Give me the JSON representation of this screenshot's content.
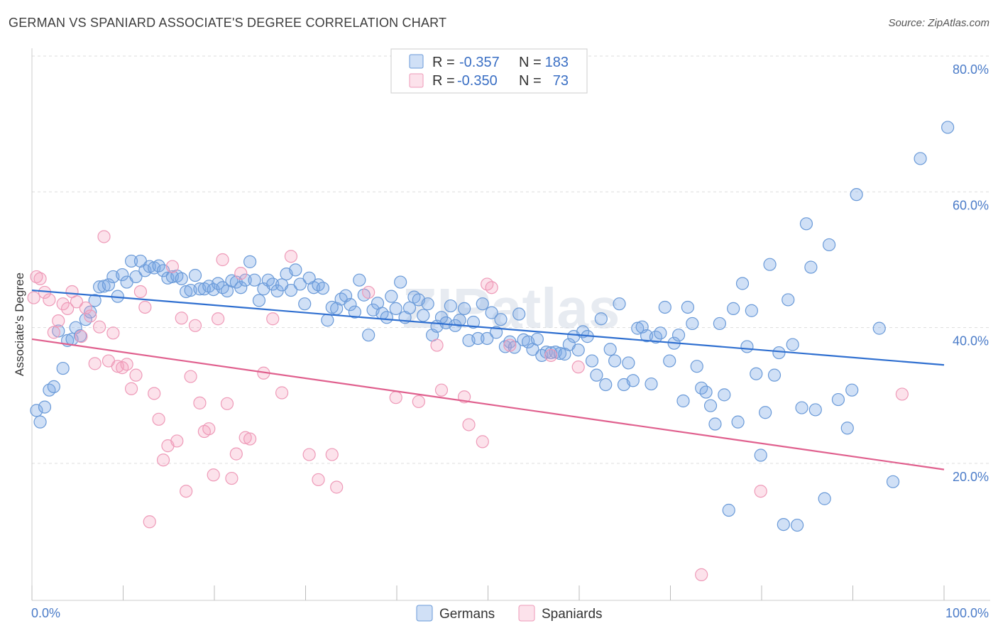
{
  "title": "GERMAN VS SPANIARD ASSOCIATE'S DEGREE CORRELATION CHART",
  "source": "Source: ZipAtlas.com",
  "watermark": "ZIPatlas",
  "colors": {
    "germans_fill": "rgba(120,165,230,0.35)",
    "germans_stroke": "#6a9ad8",
    "germans_line": "#2f6fd0",
    "spaniards_fill": "rgba(245,160,190,0.30)",
    "spaniards_stroke": "#ee9ab8",
    "spaniards_line": "#e0608e",
    "grid": "#dddddd",
    "axis_text": "#4a7bc8"
  },
  "legend": {
    "r_label": "R =",
    "n_label": "N =",
    "rows": [
      {
        "series": "Germans",
        "r": "-0.357",
        "n": "183"
      },
      {
        "series": "Spaniards",
        "r": "-0.350",
        "n": "73"
      }
    ]
  },
  "chart_data": {
    "type": "scatter",
    "title": "GERMAN VS SPANIARD ASSOCIATE'S DEGREE CORRELATION CHART",
    "xlabel": "",
    "ylabel": "Associate's Degree",
    "xlim": [
      0,
      100
    ],
    "ylim": [
      0,
      82
    ],
    "x_tick_labels": [
      "0.0%",
      "100.0%"
    ],
    "y_ticks": [
      20,
      40,
      60,
      80
    ],
    "y_tick_labels": [
      "20.0%",
      "40.0%",
      "60.0%",
      "80.0%"
    ],
    "legend_position": "bottom",
    "series": [
      {
        "name": "Germans",
        "trend": {
          "x": [
            0,
            100
          ],
          "y": [
            45.5,
            34.5
          ]
        },
        "points": [
          [
            0.5,
            27.8
          ],
          [
            0.9,
            26.1
          ],
          [
            1.4,
            28.3
          ],
          [
            1.9,
            30.8
          ],
          [
            2.4,
            31.3
          ],
          [
            2.9,
            39.5
          ],
          [
            3.4,
            34.0
          ],
          [
            3.9,
            38.1
          ],
          [
            4.4,
            38.3
          ],
          [
            4.8,
            40.0
          ],
          [
            5.3,
            38.8
          ],
          [
            5.9,
            41.2
          ],
          [
            6.4,
            42.3
          ],
          [
            6.9,
            44.0
          ],
          [
            7.4,
            46.0
          ],
          [
            7.9,
            46.1
          ],
          [
            8.4,
            46.3
          ],
          [
            8.9,
            47.5
          ],
          [
            9.4,
            44.6
          ],
          [
            9.9,
            47.8
          ],
          [
            10.4,
            46.7
          ],
          [
            10.9,
            49.8
          ],
          [
            11.4,
            47.5
          ],
          [
            11.9,
            49.8
          ],
          [
            12.4,
            48.4
          ],
          [
            12.9,
            49.0
          ],
          [
            13.4,
            48.8
          ],
          [
            13.9,
            49.1
          ],
          [
            14.4,
            48.4
          ],
          [
            14.9,
            47.3
          ],
          [
            15.4,
            47.5
          ],
          [
            15.9,
            47.6
          ],
          [
            16.4,
            47.2
          ],
          [
            16.9,
            45.3
          ],
          [
            17.4,
            45.5
          ],
          [
            17.9,
            47.7
          ],
          [
            18.4,
            45.7
          ],
          [
            18.9,
            45.7
          ],
          [
            19.4,
            46.1
          ],
          [
            19.9,
            45.6
          ],
          [
            20.4,
            46.5
          ],
          [
            20.9,
            45.9
          ],
          [
            21.4,
            45.4
          ],
          [
            21.9,
            46.9
          ],
          [
            22.4,
            46.7
          ],
          [
            22.9,
            45.9
          ],
          [
            23.4,
            47.0
          ],
          [
            23.9,
            49.7
          ],
          [
            24.4,
            47.0
          ],
          [
            24.9,
            44.0
          ],
          [
            25.4,
            45.7
          ],
          [
            25.9,
            47.0
          ],
          [
            26.4,
            46.4
          ],
          [
            26.9,
            45.4
          ],
          [
            27.4,
            46.3
          ],
          [
            27.9,
            47.9
          ],
          [
            28.4,
            45.5
          ],
          [
            28.9,
            48.5
          ],
          [
            29.4,
            46.4
          ],
          [
            29.9,
            43.5
          ],
          [
            30.4,
            47.3
          ],
          [
            30.9,
            45.9
          ],
          [
            31.4,
            46.3
          ],
          [
            31.9,
            45.8
          ],
          [
            32.4,
            41.1
          ],
          [
            32.9,
            43.0
          ],
          [
            33.4,
            42.8
          ],
          [
            33.9,
            44.2
          ],
          [
            34.4,
            44.7
          ],
          [
            34.9,
            43.4
          ],
          [
            35.4,
            42.3
          ],
          [
            35.9,
            47.0
          ],
          [
            36.4,
            44.8
          ],
          [
            36.9,
            38.9
          ],
          [
            37.4,
            42.6
          ],
          [
            37.9,
            43.6
          ],
          [
            38.4,
            42.1
          ],
          [
            38.9,
            41.5
          ],
          [
            39.4,
            44.6
          ],
          [
            39.9,
            42.8
          ],
          [
            40.4,
            46.7
          ],
          [
            40.9,
            41.5
          ],
          [
            41.4,
            42.9
          ],
          [
            41.9,
            44.5
          ],
          [
            42.4,
            44.1
          ],
          [
            42.9,
            41.8
          ],
          [
            43.4,
            43.5
          ],
          [
            43.9,
            38.9
          ],
          [
            44.4,
            40.2
          ],
          [
            44.9,
            41.5
          ],
          [
            45.4,
            40.7
          ],
          [
            45.9,
            43.2
          ],
          [
            46.4,
            40.3
          ],
          [
            46.9,
            41.1
          ],
          [
            47.4,
            42.8
          ],
          [
            47.9,
            38.1
          ],
          [
            48.4,
            40.8
          ],
          [
            48.9,
            38.4
          ],
          [
            49.4,
            43.5
          ],
          [
            49.9,
            38.4
          ],
          [
            50.4,
            42.2
          ],
          [
            50.9,
            39.3
          ],
          [
            51.4,
            41.2
          ],
          [
            51.9,
            37.2
          ],
          [
            52.4,
            37.9
          ],
          [
            52.9,
            37.1
          ],
          [
            53.4,
            42.0
          ],
          [
            53.9,
            38.2
          ],
          [
            54.4,
            37.9
          ],
          [
            54.9,
            36.8
          ],
          [
            55.4,
            38.3
          ],
          [
            55.9,
            35.9
          ],
          [
            56.4,
            36.4
          ],
          [
            56.9,
            36.3
          ],
          [
            57.4,
            36.4
          ],
          [
            57.9,
            36.2
          ],
          [
            58.4,
            36.1
          ],
          [
            58.9,
            37.5
          ],
          [
            59.4,
            38.7
          ],
          [
            59.9,
            36.7
          ],
          [
            60.4,
            39.4
          ],
          [
            60.9,
            38.7
          ],
          [
            61.4,
            35.1
          ],
          [
            61.9,
            33.0
          ],
          [
            62.4,
            41.3
          ],
          [
            62.9,
            31.6
          ],
          [
            63.4,
            36.8
          ],
          [
            63.9,
            35.1
          ],
          [
            64.4,
            43.5
          ],
          [
            64.9,
            31.6
          ],
          [
            65.4,
            34.8
          ],
          [
            65.9,
            32.2
          ],
          [
            66.4,
            39.9
          ],
          [
            66.9,
            40.1
          ],
          [
            67.4,
            38.8
          ],
          [
            67.9,
            31.7
          ],
          [
            68.4,
            38.6
          ],
          [
            68.9,
            39.2
          ],
          [
            69.4,
            43.0
          ],
          [
            69.9,
            35.1
          ],
          [
            70.4,
            37.7
          ],
          [
            70.9,
            38.9
          ],
          [
            71.4,
            29.2
          ],
          [
            71.9,
            43.0
          ],
          [
            72.4,
            40.6
          ],
          [
            72.9,
            34.3
          ],
          [
            73.4,
            31.1
          ],
          [
            73.9,
            30.5
          ],
          [
            74.4,
            28.5
          ],
          [
            74.9,
            25.8
          ],
          [
            75.4,
            40.6
          ],
          [
            75.9,
            30.1
          ],
          [
            76.4,
            13.1
          ],
          [
            76.9,
            42.8
          ],
          [
            77.4,
            26.1
          ],
          [
            77.9,
            46.5
          ],
          [
            78.4,
            37.2
          ],
          [
            78.9,
            42.5
          ],
          [
            79.4,
            33.2
          ],
          [
            79.9,
            21.2
          ],
          [
            80.4,
            27.5
          ],
          [
            80.9,
            49.3
          ],
          [
            81.4,
            33.0
          ],
          [
            81.9,
            36.3
          ],
          [
            82.4,
            11.0
          ],
          [
            82.9,
            44.1
          ],
          [
            83.4,
            37.5
          ],
          [
            83.9,
            10.9
          ],
          [
            84.4,
            28.2
          ],
          [
            84.9,
            55.3
          ],
          [
            85.4,
            48.9
          ],
          [
            85.9,
            27.9
          ],
          [
            86.9,
            14.8
          ],
          [
            87.4,
            52.2
          ],
          [
            88.4,
            29.4
          ],
          [
            89.4,
            25.2
          ],
          [
            89.9,
            30.8
          ],
          [
            90.4,
            59.6
          ],
          [
            92.9,
            39.9
          ],
          [
            94.4,
            17.3
          ],
          [
            97.4,
            64.9
          ],
          [
            100.4,
            69.5
          ]
        ]
      },
      {
        "name": "Spaniards",
        "trend": {
          "x": [
            0,
            100
          ],
          "y": [
            38.3,
            19.1
          ]
        },
        "points": [
          [
            0.2,
            44.4
          ],
          [
            0.5,
            47.5
          ],
          [
            0.9,
            47.2
          ],
          [
            1.4,
            45.2
          ],
          [
            1.9,
            44.1
          ],
          [
            2.4,
            39.3
          ],
          [
            2.9,
            41.0
          ],
          [
            3.4,
            43.5
          ],
          [
            3.9,
            42.8
          ],
          [
            4.4,
            45.3
          ],
          [
            4.9,
            43.8
          ],
          [
            5.4,
            38.7
          ],
          [
            5.9,
            42.9
          ],
          [
            6.4,
            41.7
          ],
          [
            6.9,
            34.7
          ],
          [
            7.4,
            40.1
          ],
          [
            7.9,
            53.4
          ],
          [
            8.4,
            35.1
          ],
          [
            8.9,
            39.2
          ],
          [
            9.4,
            34.3
          ],
          [
            9.9,
            34.1
          ],
          [
            10.4,
            34.6
          ],
          [
            10.9,
            31.0
          ],
          [
            11.4,
            33.0
          ],
          [
            11.9,
            45.3
          ],
          [
            12.4,
            43.0
          ],
          [
            12.9,
            11.4
          ],
          [
            13.4,
            30.3
          ],
          [
            13.9,
            26.5
          ],
          [
            14.4,
            20.5
          ],
          [
            14.9,
            22.6
          ],
          [
            15.4,
            49.0
          ],
          [
            15.9,
            23.3
          ],
          [
            16.4,
            41.4
          ],
          [
            16.9,
            15.9
          ],
          [
            17.4,
            32.8
          ],
          [
            17.9,
            40.3
          ],
          [
            18.4,
            28.9
          ],
          [
            18.9,
            24.7
          ],
          [
            19.4,
            25.1
          ],
          [
            19.9,
            18.3
          ],
          [
            20.4,
            41.3
          ],
          [
            20.9,
            50.0
          ],
          [
            21.4,
            28.8
          ],
          [
            21.9,
            17.8
          ],
          [
            22.4,
            21.4
          ],
          [
            22.9,
            48.0
          ],
          [
            23.4,
            23.8
          ],
          [
            23.9,
            23.6
          ],
          [
            25.4,
            33.3
          ],
          [
            26.4,
            41.3
          ],
          [
            27.4,
            30.4
          ],
          [
            28.4,
            50.5
          ],
          [
            30.4,
            21.3
          ],
          [
            31.4,
            17.6
          ],
          [
            32.9,
            21.3
          ],
          [
            33.4,
            16.5
          ],
          [
            36.9,
            45.2
          ],
          [
            39.9,
            29.7
          ],
          [
            42.4,
            29.1
          ],
          [
            44.4,
            37.4
          ],
          [
            44.9,
            30.8
          ],
          [
            47.4,
            29.8
          ],
          [
            47.9,
            25.7
          ],
          [
            49.4,
            23.2
          ],
          [
            49.9,
            46.4
          ],
          [
            50.4,
            45.9
          ],
          [
            52.4,
            37.4
          ],
          [
            56.9,
            35.9
          ],
          [
            59.9,
            34.2
          ],
          [
            73.4,
            3.6
          ],
          [
            79.9,
            15.9
          ],
          [
            95.4,
            30.2
          ]
        ]
      }
    ]
  }
}
